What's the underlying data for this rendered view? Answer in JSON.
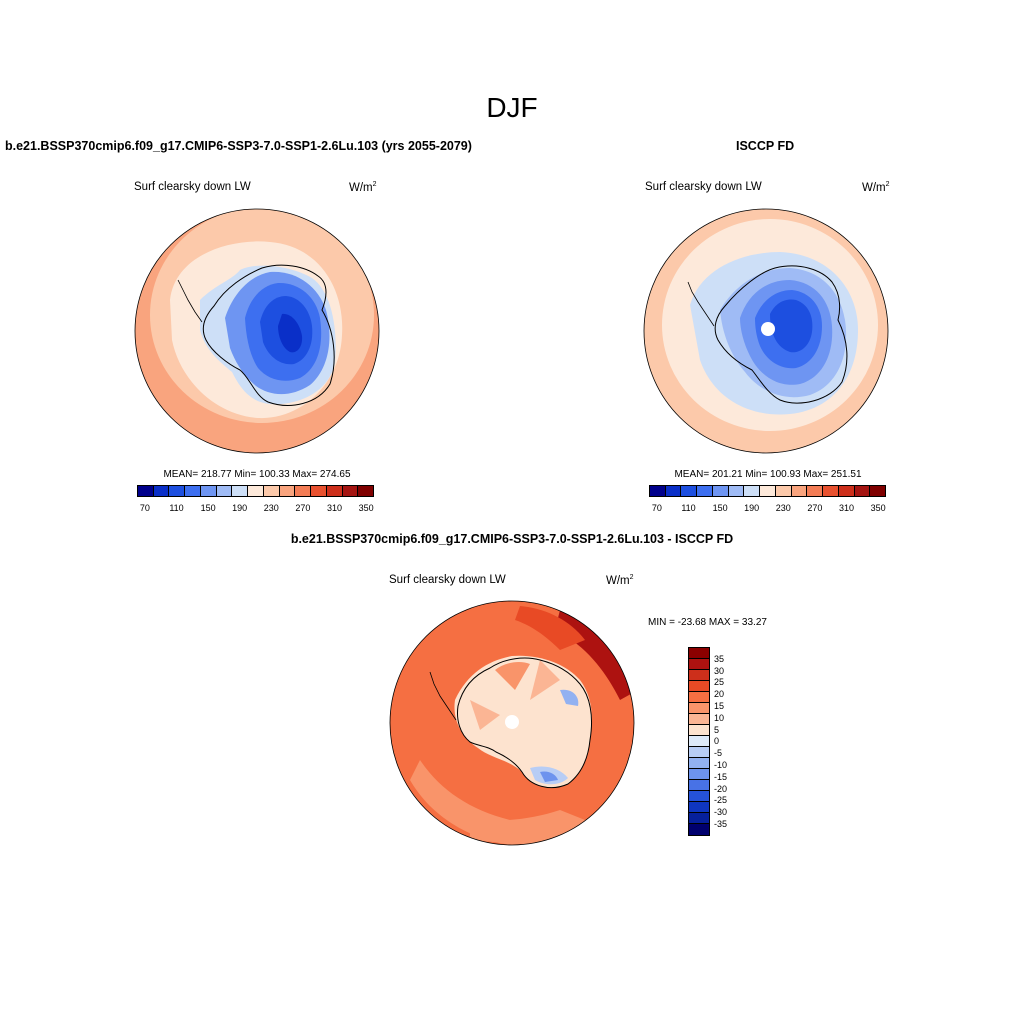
{
  "season": "DJF",
  "panels": {
    "model": {
      "title": "b.e21.BSSP370cmip6.f09_g17.CMIP6-SSP3-7.0-SSP1-2.6Lu.103 (yrs 2055-2079)",
      "variable": "Surf clearsky down LW",
      "units": "W/m",
      "units_sup": "2",
      "stats": "MEAN= 218.77  Min= 100.33  Max= 274.65",
      "mean": 218.77,
      "min": 100.33,
      "max": 274.65
    },
    "obs": {
      "title": "ISCCP FD",
      "variable": "Surf clearsky down LW",
      "units": "W/m",
      "units_sup": "2",
      "stats": "MEAN= 201.21  Min= 100.93  Max= 251.51",
      "mean": 201.21,
      "min": 100.93,
      "max": 251.51
    },
    "diff": {
      "title": "b.e21.BSSP370cmip6.f09_g17.CMIP6-SSP3-7.0-SSP1-2.6Lu.103 - ISCCP FD",
      "variable": "Surf clearsky down LW",
      "units": "W/m",
      "units_sup": "2",
      "stats": "MIN = -23.68 MAX =  33.27",
      "min": -23.68,
      "max": 33.27
    }
  },
  "colorbar_abs": {
    "colors": [
      "#00008b",
      "#0a2fc8",
      "#1d4fe0",
      "#3d6ff0",
      "#6e95f2",
      "#9fbbf5",
      "#cddff7",
      "#fde9da",
      "#fcc9aa",
      "#f9a47e",
      "#f37c55",
      "#e8512f",
      "#cd2f1b",
      "#a51512",
      "#7f0000"
    ],
    "tick_labels": [
      "70",
      "110",
      "150",
      "190",
      "230",
      "270",
      "310",
      "350"
    ]
  },
  "colorbar_diff": {
    "colors": [
      "#8b0000",
      "#ad1210",
      "#cd2f1b",
      "#e84a25",
      "#f56f42",
      "#f9946a",
      "#fbb594",
      "#fde3cf",
      "#deeaf9",
      "#b8cdf5",
      "#92b1f1",
      "#6d93ee",
      "#4872e6",
      "#2552d9",
      "#0f36c0",
      "#06209c",
      "#00006e"
    ],
    "tick_labels": [
      "35",
      "30",
      "25",
      "20",
      "15",
      "10",
      "5",
      "0",
      "-5",
      "-10",
      "-15",
      "-20",
      "-25",
      "-30",
      "-35"
    ]
  }
}
